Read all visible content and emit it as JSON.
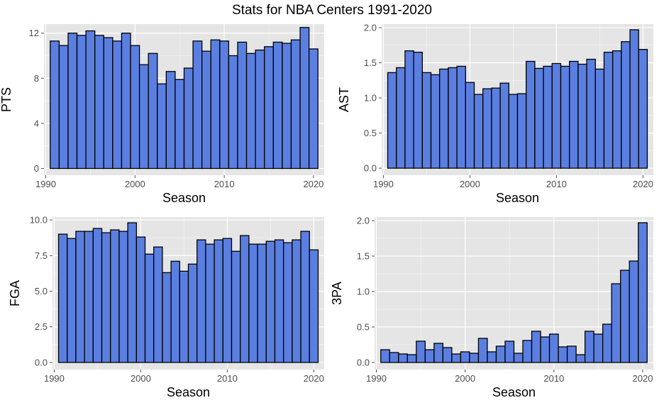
{
  "figure": {
    "title": "Stats for NBA Centers 1991-2020"
  },
  "style": {
    "panel_bg": "#e5e5e5",
    "grid_major": "#ffffff",
    "bar_fill": "#5b7fe0",
    "bar_stroke": "#000000",
    "tick_color": "#4d4d4d"
  },
  "chart_data": [
    {
      "type": "bar",
      "ylabel": "PTS",
      "xlabel": "Season",
      "xlim": [
        1989.8,
        2021.2
      ],
      "ylim": [
        -0.6,
        12.8
      ],
      "xticks": [
        1990,
        2000,
        2010,
        2020
      ],
      "yticks": [
        0,
        4,
        8,
        12
      ],
      "ytick_labels": [
        "0",
        "4",
        "8",
        "12"
      ],
      "x": [
        1991,
        1992,
        1993,
        1994,
        1995,
        1996,
        1997,
        1998,
        1999,
        2000,
        2001,
        2002,
        2003,
        2004,
        2005,
        2006,
        2007,
        2008,
        2009,
        2010,
        2011,
        2012,
        2013,
        2014,
        2015,
        2016,
        2017,
        2018,
        2019,
        2020
      ],
      "values": [
        11.3,
        10.9,
        12.0,
        11.8,
        12.2,
        11.8,
        11.6,
        11.3,
        12.0,
        10.9,
        9.2,
        10.2,
        7.5,
        8.6,
        7.9,
        8.9,
        11.3,
        10.4,
        11.4,
        11.3,
        10.0,
        11.2,
        10.2,
        10.5,
        10.8,
        11.2,
        11.1,
        11.4,
        12.5,
        10.6
      ]
    },
    {
      "type": "bar",
      "ylabel": "AST",
      "xlabel": "Season",
      "xlim": [
        1989.8,
        2021.2
      ],
      "ylim": [
        -0.1,
        2.05
      ],
      "xticks": [
        1990,
        2000,
        2010,
        2020
      ],
      "yticks": [
        0,
        0.5,
        1.0,
        1.5,
        2.0
      ],
      "ytick_labels": [
        "0.0",
        "0.5",
        "1.0",
        "1.5",
        "2.0"
      ],
      "x": [
        1991,
        1992,
        1993,
        1994,
        1995,
        1996,
        1997,
        1998,
        1999,
        2000,
        2001,
        2002,
        2003,
        2004,
        2005,
        2006,
        2007,
        2008,
        2009,
        2010,
        2011,
        2012,
        2013,
        2014,
        2015,
        2016,
        2017,
        2018,
        2019,
        2020
      ],
      "values": [
        1.36,
        1.43,
        1.67,
        1.65,
        1.36,
        1.33,
        1.41,
        1.43,
        1.45,
        1.22,
        1.05,
        1.13,
        1.14,
        1.21,
        1.05,
        1.06,
        1.52,
        1.42,
        1.45,
        1.49,
        1.45,
        1.52,
        1.48,
        1.55,
        1.41,
        1.65,
        1.67,
        1.8,
        1.97,
        1.69
      ]
    },
    {
      "type": "bar",
      "ylabel": "FGA",
      "xlabel": "Season",
      "xlim": [
        1989.8,
        2021.2
      ],
      "ylim": [
        -0.5,
        10.2
      ],
      "xticks": [
        1990,
        2000,
        2010,
        2020
      ],
      "yticks": [
        0,
        2.5,
        5.0,
        7.5,
        10.0
      ],
      "ytick_labels": [
        "0.0",
        "2.5",
        "5.0",
        "7.5",
        "10.0"
      ],
      "x": [
        1991,
        1992,
        1993,
        1994,
        1995,
        1996,
        1997,
        1998,
        1999,
        2000,
        2001,
        2002,
        2003,
        2004,
        2005,
        2006,
        2007,
        2008,
        2009,
        2010,
        2011,
        2012,
        2013,
        2014,
        2015,
        2016,
        2017,
        2018,
        2019,
        2020
      ],
      "values": [
        9.0,
        8.7,
        9.2,
        9.2,
        9.4,
        9.1,
        9.3,
        9.2,
        9.8,
        8.8,
        7.6,
        8.1,
        6.3,
        7.1,
        6.4,
        6.9,
        8.6,
        8.3,
        8.6,
        8.7,
        7.8,
        8.9,
        8.3,
        8.3,
        8.5,
        8.6,
        8.4,
        8.6,
        9.2,
        7.9
      ]
    },
    {
      "type": "bar",
      "ylabel": "3PA",
      "xlabel": "Season",
      "xlim": [
        1989.8,
        2021.2
      ],
      "ylim": [
        -0.1,
        2.05
      ],
      "xticks": [
        1990,
        2000,
        2010,
        2020
      ],
      "yticks": [
        0,
        0.5,
        1.0,
        1.5,
        2.0
      ],
      "ytick_labels": [
        "0.0",
        "0.5",
        "1.0",
        "1.5",
        "2.0"
      ],
      "x": [
        1991,
        1992,
        1993,
        1994,
        1995,
        1996,
        1997,
        1998,
        1999,
        2000,
        2001,
        2002,
        2003,
        2004,
        2005,
        2006,
        2007,
        2008,
        2009,
        2010,
        2011,
        2012,
        2013,
        2014,
        2015,
        2016,
        2017,
        2018,
        2019,
        2020
      ],
      "values": [
        0.18,
        0.14,
        0.12,
        0.11,
        0.3,
        0.18,
        0.27,
        0.21,
        0.12,
        0.15,
        0.13,
        0.34,
        0.15,
        0.23,
        0.3,
        0.13,
        0.31,
        0.44,
        0.36,
        0.4,
        0.22,
        0.23,
        0.11,
        0.44,
        0.4,
        0.54,
        1.11,
        1.3,
        1.43,
        1.97
      ]
    }
  ]
}
